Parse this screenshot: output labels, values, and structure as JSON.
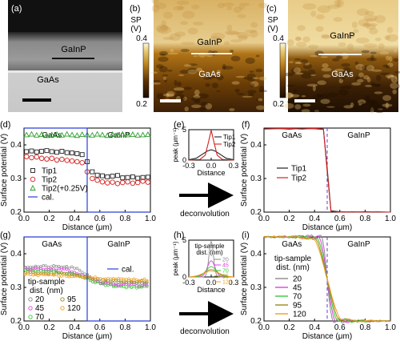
{
  "panels": {
    "a": {
      "label": "(a)",
      "gainp": "GaInP",
      "gaas": "GaAs"
    },
    "b": {
      "label": "(b)",
      "gainp": "GaInP",
      "gaas": "GaAs",
      "cb_title1": "SP",
      "cb_title2": "(V)",
      "cb_max": "0.4",
      "cb_min": "0.2"
    },
    "c": {
      "label": "(c)",
      "gainp": "GaInP",
      "gaas": "GaAs",
      "cb_title1": "SP",
      "cb_title2": "(V)",
      "cb_max": "0.4",
      "cb_min": "0.2"
    },
    "e": {
      "label": "(e)",
      "arrow_text": "deconvolution"
    },
    "h": {
      "label": "(h)",
      "arrow_text": "deconvolution",
      "legend_title1": "tip-sample",
      "legend_title2": "dist. (nm)"
    }
  },
  "chart_data": [
    {
      "id": "d",
      "label": "(d)",
      "type": "scatter",
      "xlabel": "Distance (μm)",
      "ylabel": "Surface potential (V)",
      "xlim": [
        0,
        1.0
      ],
      "ylim": [
        0.2,
        0.45
      ],
      "xticks": [
        "0.0",
        "0.2",
        "0.4",
        "0.6",
        "0.8",
        "1.0"
      ],
      "yticks": [
        "0.2",
        "0.3",
        "0.4"
      ],
      "region_left": "GaAs",
      "region_right": "GaInP",
      "series": [
        {
          "name": "Tip1",
          "marker": "square",
          "color": "#222222",
          "x": [
            0.02,
            0.06,
            0.1,
            0.14,
            0.18,
            0.22,
            0.26,
            0.3,
            0.34,
            0.38,
            0.42,
            0.46,
            0.5,
            0.54,
            0.58,
            0.62,
            0.66,
            0.7,
            0.74,
            0.78,
            0.82,
            0.86,
            0.9,
            0.94,
            0.98
          ],
          "values": [
            0.38,
            0.382,
            0.379,
            0.381,
            0.383,
            0.38,
            0.378,
            0.381,
            0.377,
            0.376,
            0.374,
            0.371,
            0.35,
            0.32,
            0.31,
            0.308,
            0.305,
            0.307,
            0.309,
            0.302,
            0.303,
            0.305,
            0.301,
            0.303,
            0.304
          ]
        },
        {
          "name": "Tip2",
          "marker": "circle",
          "color": "#d42020",
          "x": [
            0.02,
            0.06,
            0.1,
            0.14,
            0.18,
            0.22,
            0.26,
            0.3,
            0.34,
            0.38,
            0.42,
            0.46,
            0.5,
            0.54,
            0.58,
            0.62,
            0.66,
            0.7,
            0.74,
            0.78,
            0.82,
            0.86,
            0.9,
            0.94,
            0.98
          ],
          "values": [
            0.365,
            0.362,
            0.364,
            0.36,
            0.358,
            0.36,
            0.355,
            0.357,
            0.354,
            0.352,
            0.35,
            0.347,
            0.32,
            0.3,
            0.295,
            0.29,
            0.287,
            0.289,
            0.285,
            0.288,
            0.29,
            0.286,
            0.288,
            0.292,
            0.289
          ]
        },
        {
          "name": "Tip2(+0.25V)",
          "marker": "triangle",
          "color": "#2e9e2e",
          "x": [
            0.02,
            0.06,
            0.1,
            0.14,
            0.18,
            0.22,
            0.26,
            0.3,
            0.34,
            0.38,
            0.42,
            0.46,
            0.5,
            0.54,
            0.58,
            0.62,
            0.66,
            0.7,
            0.74,
            0.78,
            0.82,
            0.86,
            0.9,
            0.94,
            0.98
          ],
          "values": [
            0.43,
            0.432,
            0.429,
            0.431,
            0.428,
            0.43,
            0.431,
            0.429,
            0.432,
            0.43,
            0.428,
            0.431,
            0.43,
            0.429,
            0.432,
            0.43,
            0.428,
            0.431,
            0.429,
            0.432,
            0.43,
            0.431,
            0.429,
            0.43,
            0.431
          ]
        },
        {
          "name": "cal.",
          "marker": "line",
          "color": "#2a3fd6",
          "x": [
            0,
            0.5,
            0.5,
            1.0
          ],
          "values": [
            0.45,
            0.45,
            0.2,
            0.2
          ]
        }
      ]
    },
    {
      "id": "e",
      "label": "(e)",
      "type": "line",
      "xlabel": "Distance",
      "ylabel": "peak (μm⁻¹)",
      "xlim": [
        -0.3,
        0.3
      ],
      "ylim": [
        0,
        5
      ],
      "xticks": [
        "-0.3",
        "0.0",
        "0.3"
      ],
      "yticks": [
        "0",
        "5"
      ],
      "series": [
        {
          "name": "Tip1",
          "color": "#222222",
          "x": [
            -0.3,
            -0.2,
            -0.1,
            -0.05,
            0,
            0.05,
            0.1,
            0.2,
            0.3
          ],
          "values": [
            0.05,
            0.3,
            1.1,
            1.5,
            1.7,
            1.5,
            1.1,
            0.3,
            0.05
          ]
        },
        {
          "name": "Tip2",
          "color": "#d42020",
          "x": [
            -0.3,
            -0.15,
            -0.08,
            -0.04,
            0,
            0.04,
            0.08,
            0.15,
            0.3
          ],
          "values": [
            0,
            0.1,
            0.8,
            2.8,
            4.9,
            2.8,
            0.8,
            0.1,
            0
          ]
        }
      ]
    },
    {
      "id": "f",
      "label": "(f)",
      "type": "line",
      "xlabel": "Distance (μm)",
      "ylabel": "Surface potential (V)",
      "xlim": [
        0,
        1.0
      ],
      "ylim": [
        0.2,
        0.45
      ],
      "xticks": [
        "0.0",
        "0.2",
        "0.4",
        "0.6",
        "0.8",
        "1.0"
      ],
      "yticks": [
        "0.2",
        "0.3",
        "0.4"
      ],
      "region_left": "GaAs",
      "region_right": "GaInP",
      "series": [
        {
          "name": "Tip1",
          "color": "#222222",
          "x": [
            0,
            0.1,
            0.2,
            0.3,
            0.4,
            0.47,
            0.5,
            0.53,
            0.6,
            0.7,
            0.8,
            0.9,
            1.0
          ],
          "values": [
            0.448,
            0.449,
            0.447,
            0.449,
            0.448,
            0.446,
            0.33,
            0.204,
            0.201,
            0.2,
            0.201,
            0.2,
            0.2
          ]
        },
        {
          "name": "Tip2",
          "color": "#d42020",
          "x": [
            0,
            0.1,
            0.2,
            0.3,
            0.4,
            0.47,
            0.5,
            0.53,
            0.6,
            0.7,
            0.8,
            0.9,
            1.0
          ],
          "values": [
            0.447,
            0.448,
            0.449,
            0.447,
            0.449,
            0.447,
            0.32,
            0.203,
            0.2,
            0.201,
            0.2,
            0.201,
            0.2
          ]
        }
      ]
    },
    {
      "id": "g",
      "label": "(g)",
      "type": "scatter",
      "xlabel": "Distance (μm)",
      "ylabel": "Surface potential (V)",
      "xlim": [
        0,
        1.0
      ],
      "ylim": [
        0.2,
        0.45
      ],
      "xticks": [
        "0.0",
        "0.2",
        "0.4",
        "0.6",
        "0.8",
        "1.0"
      ],
      "yticks": [
        "0.2",
        "0.3",
        "0.4"
      ],
      "region_left": "GaAs",
      "region_right": "GaInP",
      "legend_title1": "tip-sample",
      "legend_title2": "dist. (nm)",
      "series": [
        {
          "name": "20",
          "color": "#8a8a8a",
          "left": 0.362,
          "right": 0.312
        },
        {
          "name": "45",
          "color": "#e040e0",
          "left": 0.356,
          "right": 0.306
        },
        {
          "name": "70",
          "color": "#38c838",
          "left": 0.35,
          "right": 0.3
        },
        {
          "name": "95",
          "color": "#9a8a1a",
          "left": 0.344,
          "right": 0.316
        },
        {
          "name": "120",
          "color": "#f0a020",
          "left": 0.338,
          "right": 0.322
        },
        {
          "name": "cal.",
          "color": "#2a3fd6",
          "left": 0.45,
          "right": 0.2
        }
      ]
    },
    {
      "id": "h",
      "label": "(h)",
      "type": "line",
      "xlabel": "Distance",
      "ylabel": "peak (μm⁻¹)",
      "xlim": [
        -0.3,
        0.3
      ],
      "ylim": [
        0,
        5
      ],
      "xticks": [
        "-0.3",
        "0.0",
        "0.3"
      ],
      "yticks": [
        "0",
        "5"
      ],
      "series": [
        {
          "name": "20",
          "color": "#8a8a8a",
          "peak": 4.8,
          "width": 0.03
        },
        {
          "name": "45",
          "color": "#e040e0",
          "peak": 2.2,
          "width": 0.05
        },
        {
          "name": "70",
          "color": "#38c838",
          "peak": 1.4,
          "width": 0.07
        },
        {
          "name": "95",
          "color": "#9a8a1a",
          "peak": 1.0,
          "width": 0.09
        },
        {
          "name": "120",
          "color": "#f0a020",
          "peak": 0.8,
          "width": 0.11
        }
      ]
    },
    {
      "id": "i",
      "label": "(i)",
      "type": "line",
      "xlabel": "Distance (μm)",
      "ylabel": "Surface potential (V)",
      "xlim": [
        0,
        1.0
      ],
      "ylim": [
        0.2,
        0.45
      ],
      "xticks": [
        "0.0",
        "0.2",
        "0.4",
        "0.6",
        "0.8",
        "1.0"
      ],
      "yticks": [
        "0.2",
        "0.3",
        "0.4"
      ],
      "region_left": "GaAs",
      "region_right": "GaInP",
      "legend_title1": "tip-sample",
      "legend_title2": "dist. (nm)",
      "series": [
        {
          "name": "20",
          "color": "#8a8a8a"
        },
        {
          "name": "45",
          "color": "#e040e0"
        },
        {
          "name": "70",
          "color": "#38c838"
        },
        {
          "name": "95",
          "color": "#9a8a1a"
        },
        {
          "name": "120",
          "color": "#f0a020"
        }
      ]
    }
  ]
}
